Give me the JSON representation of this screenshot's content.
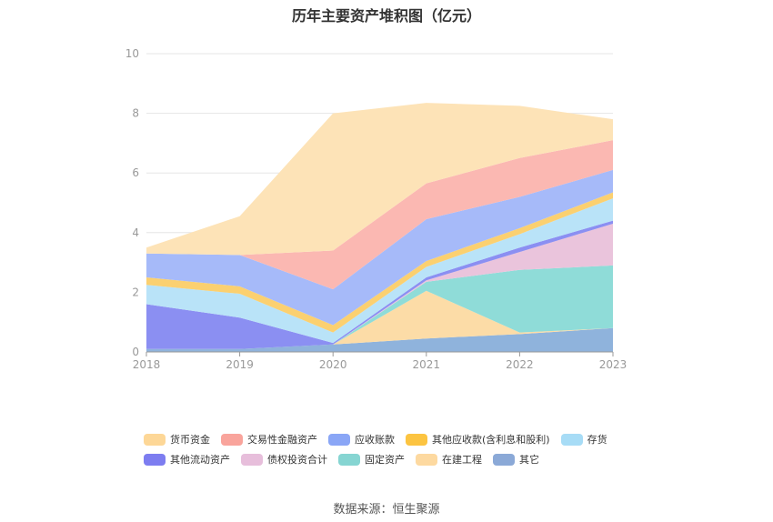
{
  "chart_data": {
    "type": "area",
    "stacked": true,
    "title": "历年主要资产堆积图（亿元）",
    "x": [
      "2018",
      "2019",
      "2020",
      "2021",
      "2022",
      "2023"
    ],
    "ylim": [
      0,
      10
    ],
    "yticks": [
      "0",
      "2",
      "4",
      "6",
      "8",
      "10"
    ],
    "grid": true,
    "legend_position": "bottom",
    "series": [
      {
        "name": "其它",
        "color": "#8fb3dc",
        "values": [
          0.1,
          0.1,
          0.25,
          0.45,
          0.6,
          0.8
        ]
      },
      {
        "name": "在建工程",
        "color": "#fcdca7",
        "values": [
          0,
          0,
          0,
          1.6,
          0.05,
          0
        ]
      },
      {
        "name": "固定资产",
        "color": "#8fdcd8",
        "values": [
          0,
          0,
          0,
          0.3,
          2.1,
          2.1
        ]
      },
      {
        "name": "债权投资合计",
        "color": "#eac4dc",
        "values": [
          0,
          0,
          0,
          0.05,
          0.6,
          1.4
        ]
      },
      {
        "name": "其他流动资产",
        "color": "#8b8ff2",
        "values": [
          1.5,
          1.05,
          0.05,
          0.1,
          0.15,
          0.1
        ]
      },
      {
        "name": "存货",
        "color": "#b9e3f8",
        "values": [
          0.65,
          0.8,
          0.35,
          0.35,
          0.45,
          0.75
        ]
      },
      {
        "name": "其他应收款(含利息和股利)",
        "color": "#fbd070",
        "values": [
          0.25,
          0.25,
          0.25,
          0.2,
          0.2,
          0.2
        ]
      },
      {
        "name": "应收账款",
        "color": "#a6baf9",
        "values": [
          0.8,
          1.05,
          1.2,
          1.4,
          1.05,
          0.75
        ]
      },
      {
        "name": "交易性金融资产",
        "color": "#fbb8b2",
        "values": [
          0,
          0,
          1.3,
          1.2,
          1.3,
          1.0
        ]
      },
      {
        "name": "货币资金",
        "color": "#fde3b7",
        "values": [
          0.2,
          1.3,
          4.6,
          2.7,
          1.75,
          0.7
        ]
      }
    ],
    "legend_order": [
      "货币资金",
      "交易性金融资产",
      "应收账款",
      "其他应收款(含利息和股利)",
      "存货",
      "其他流动资产",
      "债权投资合计",
      "固定资产",
      "在建工程",
      "其它"
    ],
    "legend_colors": [
      "#fdd797",
      "#f9a49c",
      "#8aa6f6",
      "#fcc441",
      "#a7dcf6",
      "#7d7df0",
      "#e7bedb",
      "#86d5d2",
      "#fdd9a0",
      "#8ba9d7"
    ]
  },
  "source": "数据来源：恒生聚源"
}
